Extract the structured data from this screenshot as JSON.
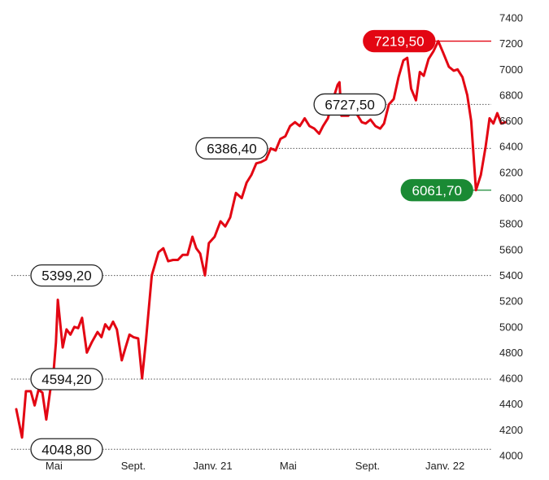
{
  "chart_data": {
    "type": "line",
    "title": "",
    "xlabel": "",
    "ylabel": "",
    "ylim": [
      4000,
      7400
    ],
    "grid": false,
    "y_ticks": [
      "4000",
      "4200",
      "4400",
      "4600",
      "4800",
      "5000",
      "5200",
      "5400",
      "5600",
      "5800",
      "6000",
      "6200",
      "6400",
      "6600",
      "6800",
      "7000",
      "7200",
      "7400"
    ],
    "x_ticks": [
      {
        "label": "Mai",
        "t": 0.1
      },
      {
        "label": "Sept.",
        "t": 4.2
      },
      {
        "label": "Janv. 21",
        "t": 8.3
      },
      {
        "label": "Mai",
        "t": 12.2
      },
      {
        "label": "Sept.",
        "t": 16.3
      },
      {
        "label": "Janv. 22",
        "t": 20.3
      }
    ],
    "series": [
      {
        "color": "#e30613",
        "points": [
          [
            -1.85,
            4360
          ],
          [
            -1.55,
            4140
          ],
          [
            -1.35,
            4500
          ],
          [
            -1.1,
            4500
          ],
          [
            -0.9,
            4390
          ],
          [
            -0.7,
            4510
          ],
          [
            -0.5,
            4490
          ],
          [
            -0.3,
            4280
          ],
          [
            -0.1,
            4500
          ],
          [
            0.05,
            4600
          ],
          [
            0.2,
            4880
          ],
          [
            0.3,
            5210
          ],
          [
            0.55,
            4840
          ],
          [
            0.75,
            4980
          ],
          [
            0.95,
            4940
          ],
          [
            1.15,
            5000
          ],
          [
            1.35,
            4990
          ],
          [
            1.55,
            5070
          ],
          [
            1.8,
            4800
          ],
          [
            2.05,
            4880
          ],
          [
            2.35,
            4960
          ],
          [
            2.55,
            4920
          ],
          [
            2.75,
            5020
          ],
          [
            2.95,
            4980
          ],
          [
            3.15,
            5040
          ],
          [
            3.35,
            4980
          ],
          [
            3.6,
            4740
          ],
          [
            3.8,
            4840
          ],
          [
            4.0,
            4940
          ],
          [
            4.2,
            4920
          ],
          [
            4.45,
            4910
          ],
          [
            4.65,
            4600
          ],
          [
            4.85,
            4890
          ],
          [
            5.15,
            5399.2
          ],
          [
            5.5,
            5580
          ],
          [
            5.75,
            5610
          ],
          [
            6.0,
            5510
          ],
          [
            6.25,
            5520
          ],
          [
            6.5,
            5520
          ],
          [
            6.75,
            5560
          ],
          [
            7.0,
            5560
          ],
          [
            7.25,
            5700
          ],
          [
            7.45,
            5610
          ],
          [
            7.65,
            5570
          ],
          [
            7.9,
            5400
          ],
          [
            8.1,
            5650
          ],
          [
            8.4,
            5700
          ],
          [
            8.7,
            5820
          ],
          [
            8.95,
            5780
          ],
          [
            9.2,
            5850
          ],
          [
            9.5,
            6040
          ],
          [
            9.8,
            6000
          ],
          [
            10.05,
            6120
          ],
          [
            10.3,
            6180
          ],
          [
            10.55,
            6270
          ],
          [
            10.8,
            6280
          ],
          [
            11.05,
            6300
          ],
          [
            11.3,
            6386.4
          ],
          [
            11.55,
            6370
          ],
          [
            11.8,
            6460
          ],
          [
            12.05,
            6480
          ],
          [
            12.3,
            6560
          ],
          [
            12.55,
            6590
          ],
          [
            12.8,
            6560
          ],
          [
            13.05,
            6620
          ],
          [
            13.3,
            6560
          ],
          [
            13.55,
            6540
          ],
          [
            13.8,
            6500
          ],
          [
            14.0,
            6560
          ],
          [
            14.25,
            6620
          ],
          [
            14.5,
            6760
          ],
          [
            14.75,
            6880
          ],
          [
            14.85,
            6900
          ],
          [
            14.95,
            6640
          ],
          [
            15.3,
            6640
          ],
          [
            15.55,
            6690
          ],
          [
            15.8,
            6640
          ],
          [
            16.0,
            6590
          ],
          [
            16.2,
            6580
          ],
          [
            16.45,
            6610
          ],
          [
            16.7,
            6560
          ],
          [
            16.95,
            6540
          ],
          [
            17.15,
            6580
          ],
          [
            17.4,
            6727.5
          ],
          [
            17.65,
            6770
          ],
          [
            17.9,
            6940
          ],
          [
            18.15,
            7070
          ],
          [
            18.35,
            7090
          ],
          [
            18.55,
            6850
          ],
          [
            18.8,
            6760
          ],
          [
            19.0,
            6980
          ],
          [
            19.2,
            6950
          ],
          [
            19.45,
            7080
          ],
          [
            19.7,
            7140
          ],
          [
            19.95,
            7219.5
          ],
          [
            20.2,
            7130
          ],
          [
            20.5,
            7020
          ],
          [
            20.75,
            6990
          ],
          [
            20.95,
            7000
          ],
          [
            21.2,
            6940
          ],
          [
            21.45,
            6800
          ],
          [
            21.65,
            6600
          ],
          [
            21.9,
            6061.7
          ],
          [
            22.15,
            6180
          ],
          [
            22.4,
            6400
          ],
          [
            22.6,
            6620
          ],
          [
            22.8,
            6580
          ],
          [
            23.0,
            6660
          ],
          [
            23.2,
            6580
          ],
          [
            23.45,
            6590
          ]
        ]
      }
    ],
    "annotations": [
      {
        "text": "7219,50",
        "value": 7219.5,
        "color": "#e30613",
        "style": "filled",
        "side": "middle",
        "line": "solid"
      },
      {
        "text": "6727,50",
        "value": 6727.5,
        "color": "#222222",
        "style": "outline",
        "side": "middle",
        "line": "dotted"
      },
      {
        "text": "6386,40",
        "value": 6386.4,
        "color": "#222222",
        "style": "outline",
        "side": "middle",
        "line": "dotted"
      },
      {
        "text": "6061,70",
        "value": 6061.7,
        "color": "#1a8a34",
        "style": "filled",
        "side": "middle",
        "line": "solid"
      },
      {
        "text": "5399,20",
        "value": 5399.2,
        "color": "#222222",
        "style": "outline",
        "side": "left",
        "line": "dotted"
      },
      {
        "text": "4594,20",
        "value": 4594.2,
        "color": "#222222",
        "style": "outline",
        "side": "left",
        "line": "dotted"
      },
      {
        "text": "4048,80",
        "value": 4048.8,
        "color": "#222222",
        "style": "outline",
        "side": "left",
        "line": "dotted"
      }
    ]
  }
}
